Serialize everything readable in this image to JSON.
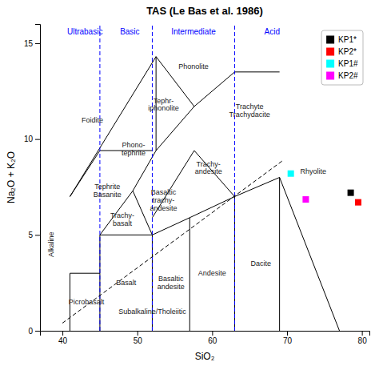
{
  "chart_data": {
    "type": "scatter",
    "title": "TAS (Le Bas et al. 1986)",
    "xlabel": "SiO₂",
    "ylabel": "Na₂O + K₂O",
    "xlim": [
      37,
      81
    ],
    "ylim": [
      0,
      16
    ],
    "xticks": [
      40,
      50,
      60,
      70,
      80
    ],
    "yticks": [
      0,
      5,
      10,
      15
    ],
    "marker": "square",
    "legend": "upper right",
    "series": [
      {
        "name": "KP1*",
        "color": "black",
        "x": [
          78.5
        ],
        "values": [
          7.2
        ]
      },
      {
        "name": "KP2*",
        "color": "red",
        "x": [
          79.5
        ],
        "values": [
          6.7
        ]
      },
      {
        "name": "KP1#",
        "color": "cyan",
        "x": [
          70.5
        ],
        "values": [
          8.2
        ]
      },
      {
        "name": "KP2#",
        "color": "magenta",
        "x": [
          72.5
        ],
        "values": [
          6.85
        ]
      }
    ],
    "lines": [
      {
        "x": [
          41,
          41
        ],
        "values": [
          0,
          3
        ],
        "color": "black",
        "line_style": "solid"
      },
      {
        "x": [
          41,
          45
        ],
        "values": [
          3,
          3
        ],
        "color": "black",
        "line_style": "solid"
      },
      {
        "x": [
          45,
          45
        ],
        "values": [
          0,
          5
        ],
        "color": "black",
        "line_style": "solid"
      },
      {
        "x": [
          45,
          52
        ],
        "values": [
          5,
          5
        ],
        "color": "black",
        "line_style": "solid"
      },
      {
        "x": [
          52,
          52
        ],
        "values": [
          0,
          5
        ],
        "color": "black",
        "line_style": "solid"
      },
      {
        "x": [
          52,
          57
        ],
        "values": [
          5,
          5.9
        ],
        "color": "black",
        "line_style": "solid"
      },
      {
        "x": [
          57,
          57
        ],
        "values": [
          0,
          5.9
        ],
        "color": "black",
        "line_style": "solid"
      },
      {
        "x": [
          57,
          63
        ],
        "values": [
          5.9,
          7
        ],
        "color": "black",
        "line_style": "solid"
      },
      {
        "x": [
          63,
          63
        ],
        "values": [
          0,
          7
        ],
        "color": "black",
        "line_style": "solid"
      },
      {
        "x": [
          63,
          69
        ],
        "values": [
          7,
          8
        ],
        "color": "black",
        "line_style": "solid"
      },
      {
        "x": [
          69,
          69
        ],
        "values": [
          0,
          8
        ],
        "color": "black",
        "line_style": "solid"
      },
      {
        "x": [
          69,
          77
        ],
        "values": [
          8,
          0
        ],
        "color": "black",
        "line_style": "solid"
      },
      {
        "x": [
          45,
          49.4
        ],
        "values": [
          5,
          7.3
        ],
        "color": "black",
        "line_style": "solid"
      },
      {
        "x": [
          49.4,
          52
        ],
        "values": [
          7.3,
          5
        ],
        "color": "black",
        "line_style": "solid"
      },
      {
        "x": [
          45,
          52
        ],
        "values": [
          9.4,
          9.4
        ],
        "color": "black",
        "line_style": "solid"
      },
      {
        "x": [
          49.4,
          52.5
        ],
        "values": [
          7.3,
          9.4
        ],
        "color": "black",
        "line_style": "solid"
      },
      {
        "x": [
          52.5,
          57.6
        ],
        "values": [
          9.4,
          11.7
        ],
        "color": "black",
        "line_style": "solid"
      },
      {
        "x": [
          57.6,
          63
        ],
        "values": [
          11.7,
          13.5
        ],
        "color": "black",
        "line_style": "solid"
      },
      {
        "x": [
          63,
          69
        ],
        "values": [
          13.5,
          13.5
        ],
        "color": "black",
        "line_style": "solid"
      },
      {
        "x": [
          41,
          45
        ],
        "values": [
          7,
          9.4
        ],
        "color": "black",
        "line_style": "solid"
      },
      {
        "x": [
          41,
          52.5
        ],
        "values": [
          7,
          14.3
        ],
        "color": "black",
        "line_style": "solid"
      },
      {
        "x": [
          52.5,
          52.5
        ],
        "values": [
          9.4,
          14.3
        ],
        "color": "black",
        "line_style": "solid"
      },
      {
        "x": [
          52.5,
          57.6
        ],
        "values": [
          14.3,
          11.7
        ],
        "color": "black",
        "line_style": "solid"
      },
      {
        "x": [
          52,
          57.6
        ],
        "values": [
          5.9,
          9.4
        ],
        "color": "black",
        "line_style": "solid"
      },
      {
        "x": [
          57.6,
          63
        ],
        "values": [
          9.4,
          7
        ],
        "color": "black",
        "line_style": "solid"
      },
      {
        "x": [
          45,
          45
        ],
        "values": [
          0,
          16
        ],
        "color": "blue",
        "line_style": "dashed"
      },
      {
        "x": [
          52,
          52
        ],
        "values": [
          0,
          16
        ],
        "color": "blue",
        "line_style": "dashed"
      },
      {
        "x": [
          63,
          63
        ],
        "values": [
          0,
          16
        ],
        "color": "blue",
        "line_style": "dashed"
      },
      {
        "x": [
          40,
          69.5
        ],
        "values": [
          0.4,
          8.9
        ],
        "color": "black",
        "line_style": "dashed"
      }
    ],
    "annotations": [
      {
        "text": "Foidite",
        "x": 44.0,
        "y": 11.0
      },
      {
        "text": "Tephrite\nBasanite",
        "x": 46.0,
        "y": 7.3
      },
      {
        "text": "Picrobasalt",
        "x": 43.2,
        "y": 1.5
      },
      {
        "text": "Basalt",
        "x": 48.5,
        "y": 2.5
      },
      {
        "text": "Basaltic\nandesite",
        "x": 54.5,
        "y": 2.5
      },
      {
        "text": "Andesite",
        "x": 60.0,
        "y": 3.0
      },
      {
        "text": "Dacite",
        "x": 66.5,
        "y": 3.5
      },
      {
        "text": "Rhyolite",
        "x": 73.5,
        "y": 8.3
      },
      {
        "text": "Trachy-\nbasalt",
        "x": 48.0,
        "y": 5.8
      },
      {
        "text": "Basaltic\ntrachy-\nandesite",
        "x": 53.5,
        "y": 6.8
      },
      {
        "text": "Trachy-\nandesite",
        "x": 59.5,
        "y": 8.5
      },
      {
        "text": "Phono-\ntephrite",
        "x": 49.5,
        "y": 9.5
      },
      {
        "text": "Tephr-\niphonolite",
        "x": 53.5,
        "y": 11.8
      },
      {
        "text": "Phonolite",
        "x": 57.5,
        "y": 13.8
      },
      {
        "text": "Trachyte\nTrachydacite",
        "x": 65.0,
        "y": 11.5
      },
      {
        "text": "Subalkaline/Tholeiitic",
        "x": 52.0,
        "y": 1.0
      },
      {
        "text": "Alkaline",
        "x": 38.5,
        "y": 4.5
      },
      {
        "text": "Ultrabasic",
        "x": 43.0,
        "y": 15.6,
        "color": "blue"
      },
      {
        "text": "Basic",
        "x": 49.0,
        "y": 15.6,
        "color": "blue"
      },
      {
        "text": "Intermediate",
        "x": 57.5,
        "y": 15.6,
        "color": "blue"
      },
      {
        "text": "Acid",
        "x": 68.0,
        "y": 15.6,
        "color": "blue"
      }
    ]
  }
}
